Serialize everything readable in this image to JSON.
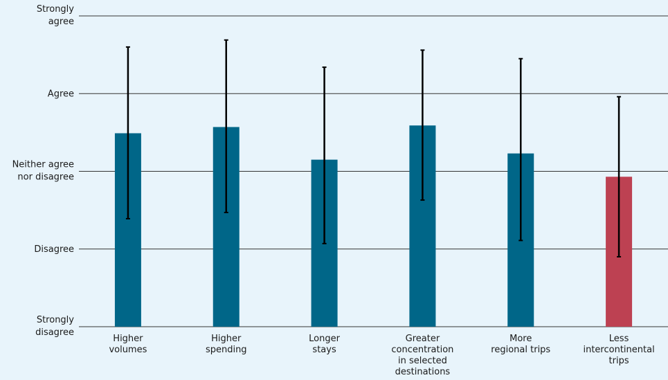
{
  "colors": {
    "background": "#e8f4fb",
    "bar_primary": "#006688",
    "bar_highlight": "#bd4152",
    "gridline": "#333333",
    "error_bar": "#000000",
    "text": "#1a1a1a"
  },
  "chart_data": {
    "type": "bar",
    "title": "",
    "xlabel": "",
    "ylabel": "",
    "ylim": [
      1,
      5
    ],
    "grid": true,
    "legend": "none",
    "y_ticks": [
      {
        "value": 5,
        "label": [
          "Strongly",
          "agree"
        ]
      },
      {
        "value": 4,
        "label": [
          "Agree"
        ]
      },
      {
        "value": 3,
        "label": [
          "Neither agree",
          "nor disagree"
        ]
      },
      {
        "value": 2,
        "label": [
          "Disagree"
        ]
      },
      {
        "value": 1,
        "label": [
          "Strongly",
          "disagree"
        ]
      }
    ],
    "categories": [
      [
        "Higher",
        "volumes"
      ],
      [
        "Higher",
        "spending"
      ],
      [
        "Longer",
        "stays"
      ],
      [
        "Greater",
        "concentration",
        "in selected",
        "destinations"
      ],
      [
        "More",
        "regional trips"
      ],
      [
        "Less",
        "intercontinental",
        "trips"
      ]
    ],
    "values": [
      3.49,
      3.57,
      3.15,
      3.59,
      3.23,
      2.93
    ],
    "error_low": [
      2.39,
      2.47,
      2.07,
      2.63,
      2.11,
      1.9
    ],
    "error_high": [
      4.6,
      4.69,
      4.34,
      4.56,
      4.45,
      3.96
    ],
    "highlight_index": 5
  }
}
